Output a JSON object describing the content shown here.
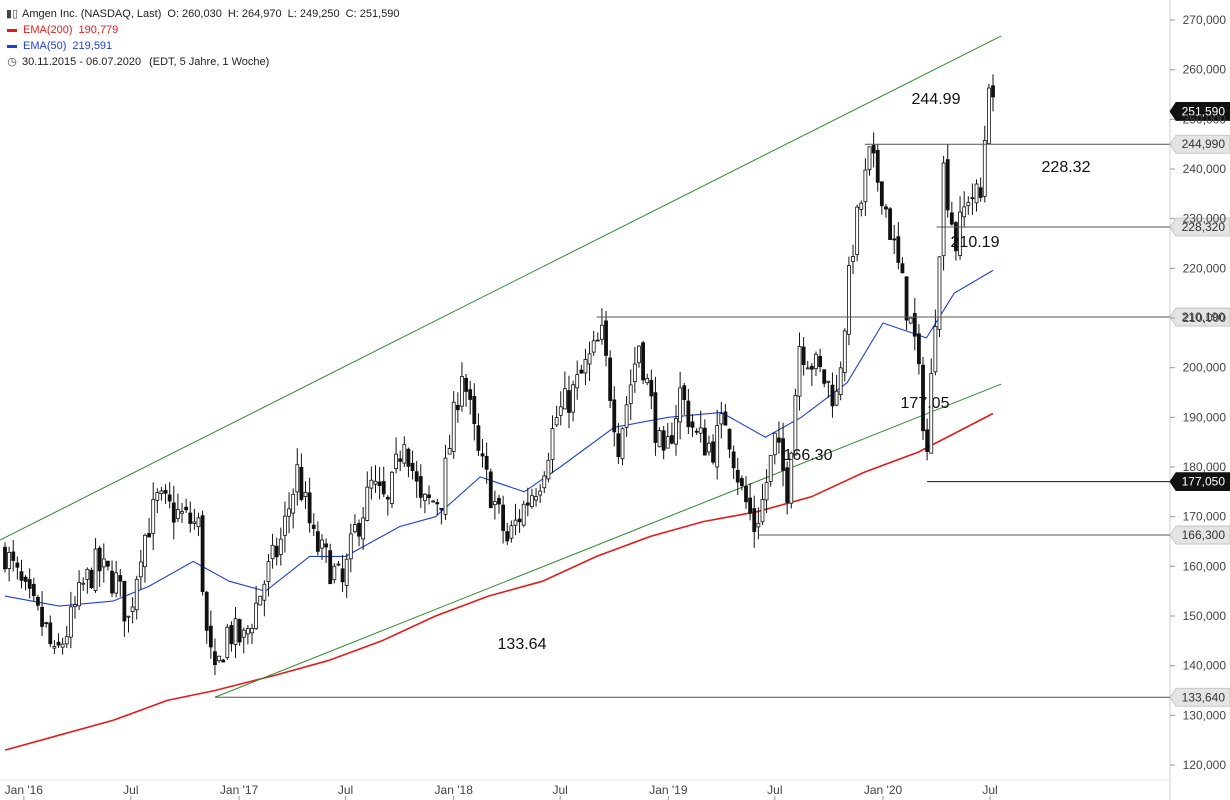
{
  "header": {
    "title": "Amgen Inc. (NASDAQ, Last)",
    "open": "O: 260,030",
    "high": "H: 264,970",
    "low": "L: 249,250",
    "close": "C: 251,590",
    "ema200_label": "EMA(200)",
    "ema200_value": "190,779",
    "ema50_label": "EMA(50)",
    "ema50_value": "219,591",
    "range": "30.11.2015 - 06.07.2020",
    "range_info": "(EDT, 5 Jahre, 1 Woche)",
    "colors": {
      "ema200": "#e21b1b",
      "ema50": "#1f3fd6",
      "channel": "#2f8a2f"
    }
  },
  "chart_data": {
    "type": "candlestick",
    "ylim": [
      116000,
      272000
    ],
    "y_ticks": [
      120000,
      130000,
      140000,
      150000,
      160000,
      170000,
      180000,
      190000,
      200000,
      210000,
      220000,
      230000,
      240000,
      250000,
      260000,
      270000
    ],
    "y_tick_labels": [
      "120,000",
      "130,000",
      "140,000",
      "150,000",
      "160,000",
      "170,000",
      "180,000",
      "190,000",
      "200,000",
      "210,000",
      "220,000",
      "230,000",
      "240,000",
      "250,000",
      "260,000",
      "270,000"
    ],
    "x_ticks": [
      {
        "label": "Jan '16",
        "date": "2016-01-01"
      },
      {
        "label": "Jul",
        "date": "2016-07-01"
      },
      {
        "label": "Jan '17",
        "date": "2017-01-01"
      },
      {
        "label": "Jul",
        "date": "2017-07-01"
      },
      {
        "label": "Jan '18",
        "date": "2018-01-01"
      },
      {
        "label": "Jul",
        "date": "2018-07-01"
      },
      {
        "label": "Jan '19",
        "date": "2019-01-01"
      },
      {
        "label": "Jul",
        "date": "2019-07-01"
      },
      {
        "label": "Jan '20",
        "date": "2020-01-01"
      },
      {
        "label": "Jul",
        "date": "2020-07-01"
      }
    ],
    "price_series": [
      [
        "2015-11-30",
        163.0
      ],
      [
        "2016-01-04",
        154.0
      ],
      [
        "2016-02-08",
        147.0
      ],
      [
        "2016-02-22",
        141.0
      ],
      [
        "2016-03-21",
        149.0
      ],
      [
        "2016-04-11",
        156.0
      ],
      [
        "2016-05-02",
        160.0
      ],
      [
        "2016-06-06",
        157.0
      ],
      [
        "2016-06-27",
        149.0
      ],
      [
        "2016-07-18",
        164.0
      ],
      [
        "2016-08-15",
        173.0
      ],
      [
        "2016-09-26",
        170.0
      ],
      [
        "2016-10-24",
        168.0
      ],
      [
        "2016-11-07",
        146.0
      ],
      [
        "2016-11-21",
        137.0
      ],
      [
        "2016-12-12",
        147.0
      ],
      [
        "2017-01-09",
        145.0
      ],
      [
        "2017-02-13",
        157.0
      ],
      [
        "2017-03-13",
        165.0
      ],
      [
        "2017-04-10",
        179.0
      ],
      [
        "2017-05-08",
        165.0
      ],
      [
        "2017-06-05",
        160.0
      ],
      [
        "2017-06-26",
        156.0
      ],
      [
        "2017-07-17",
        167.0
      ],
      [
        "2017-08-14",
        176.0
      ],
      [
        "2017-09-11",
        172.0
      ],
      [
        "2017-10-09",
        187.0
      ],
      [
        "2017-11-06",
        172.0
      ],
      [
        "2017-12-11",
        174.0
      ],
      [
        "2018-01-15",
        200.0
      ],
      [
        "2018-02-12",
        182.0
      ],
      [
        "2018-03-05",
        175.0
      ],
      [
        "2018-04-02",
        165.0
      ],
      [
        "2018-04-30",
        172.0
      ],
      [
        "2018-05-28",
        178.0
      ],
      [
        "2018-06-25",
        190.0
      ],
      [
        "2018-07-23",
        195.0
      ],
      [
        "2018-08-13",
        200.0
      ],
      [
        "2018-09-10",
        206.0
      ],
      [
        "2018-10-08",
        185.0
      ],
      [
        "2018-11-12",
        205.0
      ],
      [
        "2018-12-24",
        180.0
      ],
      [
        "2019-01-21",
        195.0
      ],
      [
        "2019-02-18",
        186.0
      ],
      [
        "2019-03-18",
        184.0
      ],
      [
        "2019-04-08",
        190.0
      ],
      [
        "2019-05-06",
        175.0
      ],
      [
        "2019-05-27",
        168.0
      ],
      [
        "2019-06-10",
        173.0
      ],
      [
        "2019-07-01",
        185.0
      ],
      [
        "2019-07-22",
        176.0
      ],
      [
        "2019-08-12",
        205.0
      ],
      [
        "2019-09-09",
        200.0
      ],
      [
        "2019-10-14",
        194.0
      ],
      [
        "2019-11-11",
        225.0
      ],
      [
        "2019-12-09",
        242.0
      ],
      [
        "2019-12-30",
        236.0
      ],
      [
        "2020-01-27",
        220.0
      ],
      [
        "2020-02-24",
        205.0
      ],
      [
        "2020-03-16",
        183.0
      ],
      [
        "2020-04-13",
        240.0
      ],
      [
        "2020-05-04",
        225.0
      ],
      [
        "2020-05-25",
        235.0
      ],
      [
        "2020-06-15",
        234.0
      ],
      [
        "2020-06-29",
        259.0
      ],
      [
        "2020-07-06",
        251.59
      ]
    ],
    "ema200_series": [
      [
        "2015-11-30",
        123.0
      ],
      [
        "2016-03-01",
        126.0
      ],
      [
        "2016-06-01",
        129.0
      ],
      [
        "2016-09-01",
        133.0
      ],
      [
        "2016-11-21",
        135.0
      ],
      [
        "2017-03-01",
        138.0
      ],
      [
        "2017-06-01",
        141.0
      ],
      [
        "2017-09-01",
        145.0
      ],
      [
        "2017-12-01",
        150.0
      ],
      [
        "2018-03-01",
        154.0
      ],
      [
        "2018-06-01",
        157.0
      ],
      [
        "2018-09-01",
        162.0
      ],
      [
        "2018-12-01",
        166.0
      ],
      [
        "2019-03-01",
        169.0
      ],
      [
        "2019-06-01",
        171.0
      ],
      [
        "2019-09-01",
        174.0
      ],
      [
        "2019-12-01",
        179.0
      ],
      [
        "2020-03-01",
        183.0
      ],
      [
        "2020-07-06",
        190.779
      ]
    ],
    "ema50_series": [
      [
        "2015-11-30",
        154.0
      ],
      [
        "2016-03-01",
        152.0
      ],
      [
        "2016-06-01",
        153.0
      ],
      [
        "2016-08-01",
        156.0
      ],
      [
        "2016-10-15",
        161.0
      ],
      [
        "2016-12-15",
        157.0
      ],
      [
        "2017-02-15",
        155.0
      ],
      [
        "2017-05-01",
        162.0
      ],
      [
        "2017-07-01",
        162.0
      ],
      [
        "2017-10-01",
        168.0
      ],
      [
        "2017-12-01",
        170.0
      ],
      [
        "2018-02-15",
        178.0
      ],
      [
        "2018-05-01",
        175.0
      ],
      [
        "2018-07-01",
        180.0
      ],
      [
        "2018-10-01",
        188.0
      ],
      [
        "2019-01-01",
        190.0
      ],
      [
        "2019-04-01",
        191.0
      ],
      [
        "2019-06-15",
        186.0
      ],
      [
        "2019-08-15",
        190.0
      ],
      [
        "2019-11-01",
        197.0
      ],
      [
        "2020-01-01",
        209.0
      ],
      [
        "2020-03-15",
        206.0
      ],
      [
        "2020-05-01",
        215.0
      ],
      [
        "2020-07-06",
        219.591
      ]
    ],
    "channel_lines": [
      {
        "name": "upper",
        "from": [
          "2015-11-30",
          165.8
        ],
        "to": [
          "2020-07-20",
          266.8
        ]
      },
      {
        "name": "lower",
        "from": [
          "2016-11-21",
          133.64
        ],
        "to": [
          "2020-07-20",
          196.7
        ]
      }
    ],
    "levels": [
      {
        "label": "244.99",
        "price_label": "244,990",
        "value": 244.99,
        "start": "2019-12-01",
        "style": "gray"
      },
      {
        "label": "228.32",
        "price_label": "228,320",
        "value": 228.32,
        "start": "2020-04-01",
        "style": "gray"
      },
      {
        "label": "210.19",
        "price_label": "210,190",
        "value": 210.19,
        "start": "2018-09-01",
        "style": "gray"
      },
      {
        "label": "177.05",
        "price_label": "177,050",
        "value": 177.05,
        "start": "2020-03-16",
        "style": "dark"
      },
      {
        "label": "166.30",
        "price_label": "166,300",
        "value": 166.3,
        "start": "2019-06-03",
        "style": "gray"
      },
      {
        "label": "133.64",
        "price_label": "133,640",
        "value": 133.64,
        "start": "2016-11-21",
        "style": "gray"
      }
    ],
    "last_price": {
      "label": "251,590",
      "value": 251.59
    }
  }
}
